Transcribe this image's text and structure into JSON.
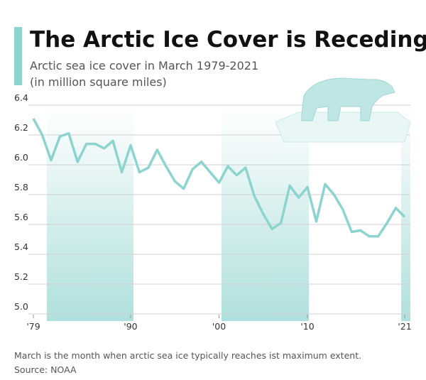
{
  "chart_data": {
    "type": "line",
    "title": "The Arctic Ice Cover is Receding",
    "subtitle": [
      "Arctic sea ice cover in March 1979-2021",
      "(in million square miles)"
    ],
    "x": [
      1979,
      1980,
      1981,
      1982,
      1983,
      1984,
      1985,
      1986,
      1987,
      1988,
      1989,
      1990,
      1991,
      1992,
      1993,
      1994,
      1995,
      1996,
      1997,
      1998,
      1999,
      2000,
      2001,
      2002,
      2003,
      2004,
      2005,
      2006,
      2007,
      2008,
      2009,
      2010,
      2011,
      2012,
      2013,
      2014,
      2015,
      2016,
      2017,
      2018,
      2019,
      2020,
      2021
    ],
    "values": [
      6.31,
      6.2,
      6.03,
      6.19,
      6.21,
      6.02,
      6.14,
      6.14,
      6.11,
      6.16,
      5.95,
      6.13,
      5.95,
      5.98,
      6.1,
      5.99,
      5.89,
      5.84,
      5.97,
      6.02,
      5.95,
      5.88,
      5.99,
      5.93,
      5.98,
      5.79,
      5.67,
      5.57,
      5.61,
      5.86,
      5.78,
      5.85,
      5.62,
      5.87,
      5.8,
      5.7,
      5.55,
      5.56,
      5.52,
      5.52,
      5.61,
      5.71,
      5.65
    ],
    "color": "#8dd3cf",
    "xlim": [
      1979,
      2021
    ],
    "xticks": [
      {
        "value": 1979,
        "label": "'79"
      },
      {
        "value": 1990,
        "label": "'90"
      },
      {
        "value": 2000,
        "label": "'00"
      },
      {
        "value": 2010,
        "label": "'10"
      },
      {
        "value": 2021,
        "label": "'21"
      }
    ],
    "ylim": [
      5.0,
      6.4
    ],
    "yticks": [
      {
        "value": 5.0,
        "label": "5.0"
      },
      5.2,
      5.4,
      5.6,
      5.8,
      {
        "value": 6.0,
        "label": "6.0"
      },
      6.2,
      6.4
    ],
    "grid": true,
    "note": "March is the month when arctic sea ice typically reaches ist maximum extent.",
    "source": "Source: NOAA"
  }
}
